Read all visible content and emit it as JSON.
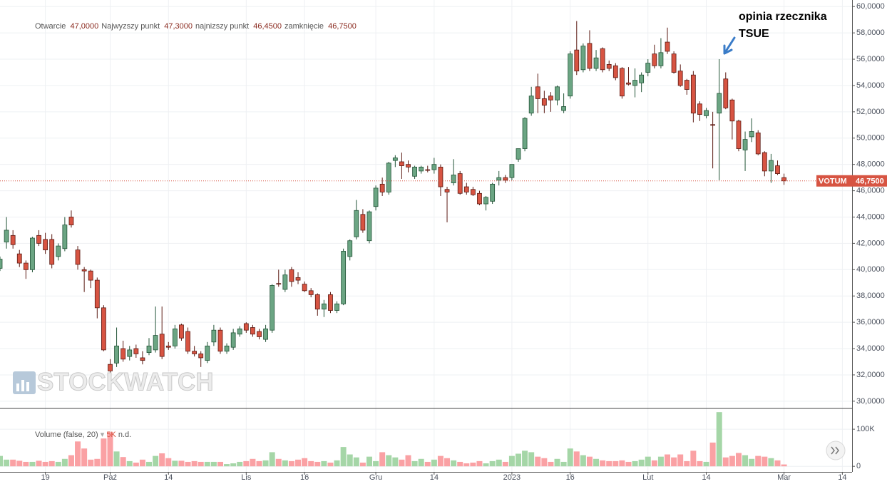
{
  "header": {
    "items": [
      {
        "label": "Otwarcie",
        "value": "47,0000"
      },
      {
        "label": "Najwyzszy punkt",
        "value": "47,3000"
      },
      {
        "label": "najnizszy punkt",
        "value": "46,4500"
      },
      {
        "label": "zamknięcie",
        "value": "46,7500"
      }
    ]
  },
  "watermark": "STOCKWATCH",
  "chart_data": {
    "type": "candlestick",
    "symbol": "VOTUM",
    "open": [
      40100,
      42100,
      42600,
      41200,
      40500,
      40000,
      42600,
      42300,
      42300,
      41000,
      41600,
      44000,
      41500,
      40000,
      39900,
      39200,
      37100,
      32800,
      32900,
      34000,
      33400,
      34000,
      33300,
      33700,
      33900,
      35100,
      34200,
      34200,
      35800,
      35300,
      33800,
      33600,
      33100,
      34500,
      35400,
      33800,
      34100,
      35100,
      35900,
      35600,
      35300,
      34700,
      35400,
      38950,
      38500,
      40000,
      39400,
      38900,
      38400,
      38100,
      37000,
      38100,
      36900,
      37400,
      41000,
      42500,
      44200,
      42200,
      44800,
      46500,
      45900,
      48300,
      48200,
      48000,
      47100,
      47500,
      47600,
      47600,
      47800,
      46100,
      46600,
      47300,
      46300,
      46100,
      45800,
      45000,
      45200,
      46800,
      47000,
      47000,
      48400,
      49200,
      51900,
      53900,
      53000,
      53200,
      52900,
      52100,
      53200,
      56700,
      55200,
      57200,
      55300,
      56800,
      55600,
      55500,
      55300,
      54200,
      54000,
      54200,
      55000,
      56400,
      55500,
      57300,
      56400,
      55100,
      54400,
      54800,
      52600,
      51700,
      51030,
      51900,
      54500,
      52900,
      51300,
      49100,
      50100,
      50400,
      48900,
      47500,
      47900,
      47000
    ],
    "high": [
      41000,
      44000,
      43000,
      41500,
      40700,
      42500,
      43000,
      42800,
      42700,
      42000,
      44000,
      44500,
      41800,
      40200,
      40000,
      39400,
      37300,
      33200,
      35600,
      34600,
      34200,
      34300,
      33800,
      34800,
      37200,
      37200,
      34500,
      35800,
      35900,
      35600,
      34200,
      33800,
      34500,
      35800,
      35600,
      34400,
      35500,
      35700,
      36000,
      35800,
      35500,
      35800,
      38900,
      40000,
      40000,
      40200,
      39800,
      39100,
      38600,
      38200,
      37700,
      38300,
      37600,
      41600,
      42300,
      45300,
      44600,
      44500,
      46400,
      47000,
      48200,
      48700,
      48900,
      48300,
      47900,
      47900,
      47900,
      48500,
      48000,
      46300,
      48400,
      47500,
      46600,
      46300,
      46000,
      45600,
      46600,
      47500,
      47200,
      48000,
      49200,
      51600,
      53900,
      54900,
      53600,
      53500,
      54000,
      53400,
      56600,
      58900,
      57200,
      58200,
      56700,
      56900,
      55900,
      55700,
      55400,
      55400,
      55300,
      55000,
      56000,
      57100,
      57600,
      58400,
      56600,
      55600,
      54500,
      55100,
      52800,
      52300,
      52000,
      56000,
      55000,
      53000,
      51400,
      50500,
      51500,
      50600,
      49000,
      48800,
      48300,
      47300
    ],
    "low": [
      39900,
      41600,
      41600,
      40200,
      39300,
      39800,
      41800,
      41200,
      40100,
      40700,
      41400,
      43200,
      40000,
      38300,
      38600,
      36300,
      33800,
      31800,
      32600,
      33000,
      33100,
      33300,
      32800,
      33500,
      33700,
      33200,
      33900,
      34000,
      34600,
      33600,
      33400,
      32600,
      32900,
      34200,
      33600,
      33600,
      33900,
      34900,
      35200,
      34900,
      34700,
      34500,
      35200,
      38700,
      38300,
      38700,
      38900,
      38300,
      37900,
      36500,
      36400,
      36700,
      36700,
      37300,
      40700,
      42300,
      42800,
      42000,
      44500,
      45600,
      45700,
      47800,
      46900,
      47400,
      46900,
      47300,
      47400,
      47300,
      45600,
      43600,
      46400,
      45700,
      45700,
      45600,
      44900,
      44500,
      45000,
      46400,
      46600,
      46800,
      48200,
      49000,
      51700,
      51900,
      51900,
      52000,
      52500,
      51900,
      53000,
      54800,
      55000,
      55100,
      55100,
      55000,
      55100,
      54400,
      53000,
      54000,
      53100,
      53500,
      54700,
      55300,
      55300,
      56400,
      54900,
      53900,
      53300,
      51200,
      51300,
      51500,
      47700,
      46800,
      52200,
      49900,
      49000,
      47500,
      49700,
      48700,
      47100,
      46600,
      47200,
      46450
    ],
    "close": [
      40800,
      43000,
      41900,
      40500,
      40000,
      42400,
      42000,
      41500,
      40400,
      41800,
      43400,
      43400,
      40400,
      39900,
      39200,
      37100,
      33900,
      32300,
      34200,
      33200,
      33900,
      33600,
      33100,
      34200,
      35000,
      33400,
      34100,
      35500,
      34800,
      33800,
      33600,
      33300,
      34200,
      35400,
      33800,
      34200,
      35200,
      35500,
      35400,
      35100,
      34900,
      35500,
      38800,
      38900,
      39600,
      39100,
      39200,
      38400,
      38100,
      37000,
      37400,
      36900,
      37400,
      41400,
      42200,
      44500,
      43000,
      44400,
      46200,
      45900,
      48100,
      48500,
      47900,
      47800,
      47800,
      47800,
      47550,
      48000,
      46300,
      45900,
      47200,
      45800,
      45900,
      45700,
      45000,
      45500,
      46500,
      47000,
      46800,
      48000,
      49200,
      51500,
      53200,
      53000,
      52500,
      52900,
      53900,
      52400,
      56400,
      55100,
      57000,
      55300,
      56100,
      55200,
      55300,
      54600,
      53200,
      54100,
      54400,
      54800,
      55700,
      55500,
      56500,
      56600,
      55000,
      54000,
      53700,
      51900,
      51800,
      52100,
      51000,
      53400,
      52300,
      51300,
      49200,
      49900,
      50500,
      48800,
      47500,
      48300,
      47300,
      46750
    ],
    "up_color": "#6ba583",
    "down_color": "#d75442",
    "up_border": "#225437",
    "down_border": "#5b1a13",
    "xlim": [
      0,
      131.5
    ],
    "xticks": [
      {
        "value": 7,
        "label": "19"
      },
      {
        "value": 17,
        "label": "Paź"
      },
      {
        "value": 26,
        "label": "14"
      },
      {
        "value": 38,
        "label": "Lis"
      },
      {
        "value": 47,
        "label": "16"
      },
      {
        "value": 58,
        "label": "Gru"
      },
      {
        "value": 67,
        "label": "14"
      },
      {
        "value": 79,
        "label": "2023"
      },
      {
        "value": 88,
        "label": "16"
      },
      {
        "value": 100,
        "label": "Lut"
      },
      {
        "value": 109,
        "label": "14"
      },
      {
        "value": 121,
        "label": "Mar"
      },
      {
        "value": 130,
        "label": "14"
      }
    ],
    "ylim": [
      29450,
      60500
    ],
    "yticks": [
      {
        "value": 30000,
        "label": "30,0000"
      },
      {
        "value": 32000,
        "label": "32,0000"
      },
      {
        "value": 34000,
        "label": "34,0000"
      },
      {
        "value": 36000,
        "label": "36,0000"
      },
      {
        "value": 38000,
        "label": "38,0000"
      },
      {
        "value": 40000,
        "label": "40,0000"
      },
      {
        "value": 42000,
        "label": "42,0000"
      },
      {
        "value": 44000,
        "label": "44,0000"
      },
      {
        "value": 46000,
        "label": "46,0000"
      },
      {
        "value": 48000,
        "label": "48,0000"
      },
      {
        "value": 50000,
        "label": "50,0000"
      },
      {
        "value": 52000,
        "label": "52,0000"
      },
      {
        "value": 54000,
        "label": "54,0000"
      },
      {
        "value": 56000,
        "label": "56,0000"
      },
      {
        "value": 58000,
        "label": "58,0000"
      },
      {
        "value": 60000,
        "label": "60,0000"
      }
    ],
    "grid": true,
    "last_price": {
      "value": 46750,
      "label": "46,7500"
    },
    "annotation": [
      "opinia rzecznika",
      "TSUE"
    ],
    "volume": {
      "title": "Volume (false, 20)",
      "last": "5K",
      "note": "n.d.",
      "values": [
        28000,
        18000,
        18000,
        15000,
        12000,
        12000,
        15000,
        12000,
        14000,
        12000,
        20000,
        30000,
        67000,
        48000,
        18000,
        20000,
        75000,
        92000,
        40000,
        25000,
        14000,
        10000,
        18000,
        12000,
        28000,
        35000,
        22000,
        15000,
        15000,
        12000,
        14000,
        12000,
        12000,
        12000,
        12000,
        6000,
        8000,
        12000,
        14000,
        20000,
        14000,
        16000,
        38000,
        20000,
        16000,
        14000,
        18000,
        22000,
        14000,
        12000,
        14000,
        10000,
        16000,
        52000,
        32000,
        24000,
        10000,
        26000,
        14000,
        38000,
        30000,
        24000,
        18000,
        30000,
        14000,
        20000,
        12000,
        18000,
        28000,
        22000,
        16000,
        12000,
        8000,
        10000,
        14000,
        8000,
        14000,
        18000,
        12000,
        28000,
        34000,
        42000,
        38000,
        26000,
        22000,
        12000,
        20000,
        12000,
        48000,
        40000,
        30000,
        26000,
        20000,
        16000,
        14000,
        14000,
        16000,
        12000,
        14000,
        18000,
        26000,
        16000,
        26000,
        32000,
        24000,
        32000,
        14000,
        42000,
        14000,
        12000,
        64000,
        146000,
        24000,
        28000,
        36000,
        30000,
        20000,
        28000,
        26000,
        22000,
        16000,
        5000
      ],
      "ylim": [
        -15000,
        154000
      ],
      "yticks": [
        0,
        {
          "value": 100000,
          "label": "100K"
        }
      ],
      "up_color": "#a5d6a7",
      "down_color": "#faa1a4"
    }
  }
}
